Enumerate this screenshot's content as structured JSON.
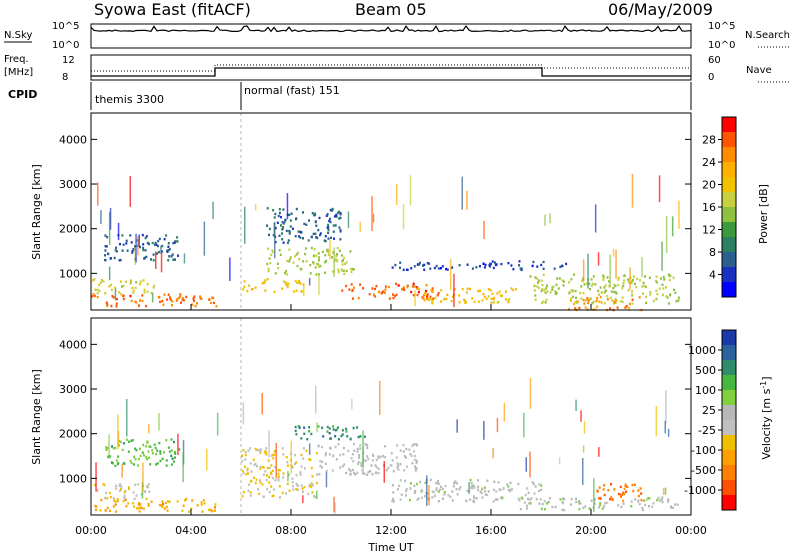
{
  "header": {
    "station": "Syowa East (fitACF)",
    "beam": "Beam 05",
    "date": "06/May/2009"
  },
  "panels": {
    "nsky_label": "N.Sky",
    "nsearch_label": "N.Search",
    "count_ticks": [
      "10^5",
      "10^0"
    ],
    "freq_label_1": "Freq.",
    "freq_label_2": "[MHz]",
    "freq_ticks": [
      "12",
      "8"
    ],
    "nave_label": "Nave",
    "nave_ticks": [
      "60",
      "0"
    ],
    "cpid_label": "CPID",
    "cpid_segments": [
      {
        "label": "themis 3300",
        "start_hour": 0,
        "end_hour": 6
      },
      {
        "label": "normal (fast) 151",
        "start_hour": 6,
        "end_hour": 24
      }
    ]
  },
  "power_colorbar": {
    "title": "Power [dB]",
    "ticks": [
      "28",
      "24",
      "20",
      "16",
      "12",
      "8",
      "4"
    ],
    "colors": [
      "#ff0000",
      "#ff5500",
      "#ff8c00",
      "#ffb000",
      "#f2c200",
      "#c8d040",
      "#90c040",
      "#3c9a3c",
      "#2a8060",
      "#2a6090",
      "#1a30c0",
      "#0000ff"
    ]
  },
  "velocity_colorbar": {
    "title": "Velocity [m s",
    "title_sup": "-1",
    "title_close": "]",
    "ticks": [
      "1000",
      "500",
      "100",
      "25",
      "-25",
      "-100",
      "-500",
      "-1000"
    ],
    "colors": [
      "#1a3aa8",
      "#2a62a0",
      "#2e8c6a",
      "#46b840",
      "#80d040",
      "#b8b8b8",
      "#c0c0c0",
      "#f0c000",
      "#ffa000",
      "#ff8000",
      "#ff5000",
      "#ff0000"
    ]
  },
  "chart_data": [
    {
      "type": "heatmap",
      "title": "Power [dB]",
      "ylabel": "Slant Range [km]",
      "xlabel": "Time UT",
      "x_ticks": [
        "00:00",
        "04:00",
        "08:00",
        "12:00",
        "16:00",
        "20:00",
        "00:00"
      ],
      "y_ticks": [
        "1000",
        "2000",
        "3000",
        "4000"
      ],
      "xlim_hours": [
        0,
        24
      ],
      "ylim_km": [
        180,
        4590
      ],
      "scatter_regions": [
        {
          "t0": 0.0,
          "t1": 5.0,
          "r0": 280,
          "r1": 560,
          "value": 26
        },
        {
          "t0": 0.0,
          "t1": 2.5,
          "r0": 560,
          "r1": 900,
          "value": 18
        },
        {
          "t0": 0.5,
          "t1": 3.5,
          "r0": 1300,
          "r1": 1900,
          "value": 8
        },
        {
          "t0": 6.0,
          "t1": 8.5,
          "r0": 600,
          "r1": 900,
          "value": 20
        },
        {
          "t0": 7.0,
          "t1": 10.5,
          "r0": 1000,
          "r1": 1600,
          "value": 16
        },
        {
          "t0": 7.0,
          "t1": 10.0,
          "r0": 1700,
          "r1": 2500,
          "value": 8
        },
        {
          "t0": 10.0,
          "t1": 14.0,
          "r0": 450,
          "r1": 800,
          "value": 26
        },
        {
          "t0": 13.0,
          "t1": 17.0,
          "r0": 350,
          "r1": 700,
          "value": 20
        },
        {
          "t0": 12.0,
          "t1": 19.0,
          "r0": 1100,
          "r1": 1300,
          "value": 6
        },
        {
          "t0": 17.5,
          "t1": 23.5,
          "r0": 350,
          "r1": 1000,
          "value": 16
        },
        {
          "t0": 19.0,
          "t1": 22.0,
          "r0": 200,
          "r1": 500,
          "value": 24
        }
      ]
    },
    {
      "type": "heatmap",
      "title": "Velocity [m s-1]",
      "ylabel": "Slant Range [km]",
      "xlabel": "Time UT",
      "x_ticks": [
        "00:00",
        "04:00",
        "08:00",
        "12:00",
        "16:00",
        "20:00",
        "00:00"
      ],
      "y_ticks": [
        "1000",
        "2000",
        "3000",
        "4000"
      ],
      "xlim_hours": [
        0,
        24
      ],
      "ylim_km": [
        180,
        4590
      ],
      "scatter_regions": [
        {
          "t0": 0.0,
          "t1": 5.0,
          "r0": 280,
          "r1": 560,
          "value": -400
        },
        {
          "t0": 0.0,
          "t1": 2.5,
          "r0": 560,
          "r1": 900,
          "value": -150
        },
        {
          "t0": 0.5,
          "t1": 3.5,
          "r0": 1300,
          "r1": 1900,
          "value": 400
        },
        {
          "t0": 6.0,
          "t1": 9.0,
          "r0": 600,
          "r1": 1700,
          "value": -200
        },
        {
          "t0": 8.0,
          "t1": 11.0,
          "r0": 1900,
          "r1": 2200,
          "value": 600
        },
        {
          "t0": 9.0,
          "t1": 13.0,
          "r0": 1100,
          "r1": 1800,
          "value": 0
        },
        {
          "t0": 12.0,
          "t1": 18.0,
          "r0": 500,
          "r1": 1000,
          "value": 60
        },
        {
          "t0": 17.0,
          "t1": 23.5,
          "r0": 300,
          "r1": 600,
          "value": 80
        },
        {
          "t0": 20.0,
          "t1": 22.0,
          "r0": 500,
          "r1": 900,
          "value": -700
        }
      ]
    }
  ]
}
